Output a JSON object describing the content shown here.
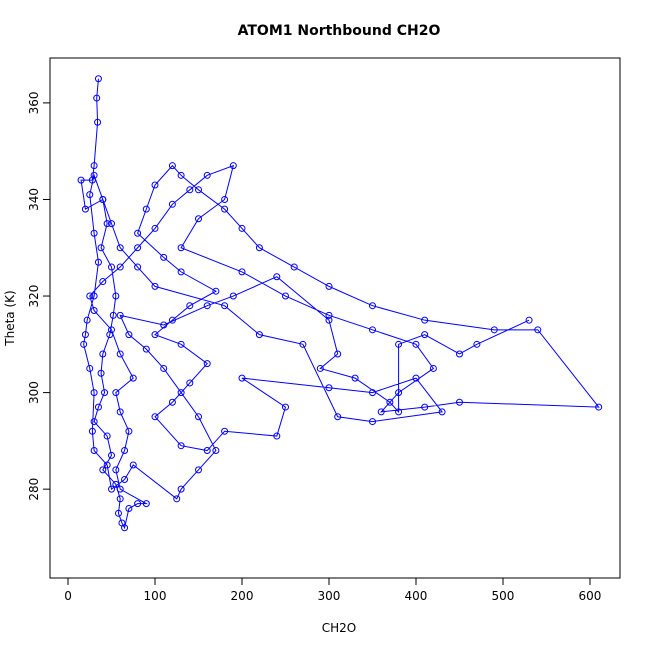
{
  "chart_data": {
    "type": "line",
    "title": "ATOM1 Northbound CH2O",
    "x_label": "CH2O",
    "y_label": "Theta (K)",
    "color": "#0000ff",
    "x": [
      35,
      33,
      34,
      30,
      28,
      15,
      20,
      40,
      45,
      38,
      50,
      55,
      52,
      48,
      40,
      38,
      42,
      35,
      30,
      45,
      50,
      40,
      55,
      60,
      58,
      62,
      65,
      70,
      80,
      90,
      60,
      55,
      65,
      70,
      60,
      55,
      75,
      60,
      50,
      30,
      25,
      40,
      60,
      80,
      100,
      120,
      140,
      160,
      190,
      180,
      150,
      130,
      200,
      250,
      300,
      350,
      400,
      420,
      380,
      360,
      410,
      450,
      610,
      540,
      490,
      410,
      350,
      300,
      260,
      220,
      200,
      180,
      150,
      130,
      120,
      100,
      90,
      80,
      110,
      130,
      170,
      140,
      120,
      100,
      130,
      160,
      140,
      120,
      100,
      130,
      160,
      180,
      240,
      250,
      200,
      300,
      350,
      400,
      430,
      350,
      310,
      270,
      220,
      180,
      100,
      80,
      60,
      50,
      40,
      30,
      25,
      30,
      35,
      30,
      22,
      20,
      18,
      25,
      30,
      28,
      30,
      45,
      50,
      65,
      75,
      125,
      130,
      150,
      170,
      150,
      130,
      110,
      90,
      70,
      60,
      110,
      160,
      190,
      240,
      300,
      310,
      290,
      330,
      370,
      380,
      380,
      410,
      450,
      470,
      530
    ],
    "values": [
      365,
      361,
      356,
      347,
      344,
      344,
      338,
      340,
      335,
      330,
      326,
      320,
      316,
      312,
      308,
      304,
      300,
      297,
      294,
      291,
      287,
      284,
      281,
      278,
      275,
      273,
      272,
      276,
      277,
      277,
      280,
      284,
      288,
      292,
      296,
      300,
      303,
      308,
      313,
      317,
      320,
      323,
      326,
      330,
      334,
      339,
      342,
      345,
      347,
      340,
      336,
      330,
      325,
      320,
      316,
      313,
      310,
      305,
      300,
      296,
      297,
      298,
      297,
      313,
      313,
      315,
      318,
      322,
      326,
      330,
      334,
      338,
      342,
      345,
      347,
      343,
      338,
      333,
      328,
      325,
      321,
      318,
      315,
      312,
      310,
      306,
      302,
      298,
      295,
      289,
      288,
      292,
      291,
      297,
      303,
      301,
      300,
      303,
      296,
      294,
      295,
      310,
      312,
      318,
      322,
      326,
      330,
      335,
      340,
      345,
      341,
      333,
      327,
      320,
      315,
      312,
      310,
      305,
      300,
      292,
      288,
      285,
      280,
      282,
      285,
      278,
      280,
      284,
      288,
      295,
      300,
      305,
      309,
      312,
      316,
      314,
      318,
      320,
      324,
      315,
      308,
      305,
      303,
      298,
      296,
      310,
      312,
      308,
      310,
      315
    ],
    "xlim": [
      -20.7,
      634.5
    ],
    "ylim": [
      261.6,
      369.3
    ],
    "xticks": [
      0,
      100,
      200,
      300,
      400,
      500,
      600
    ],
    "yticks": [
      280,
      300,
      320,
      340,
      360
    ]
  }
}
